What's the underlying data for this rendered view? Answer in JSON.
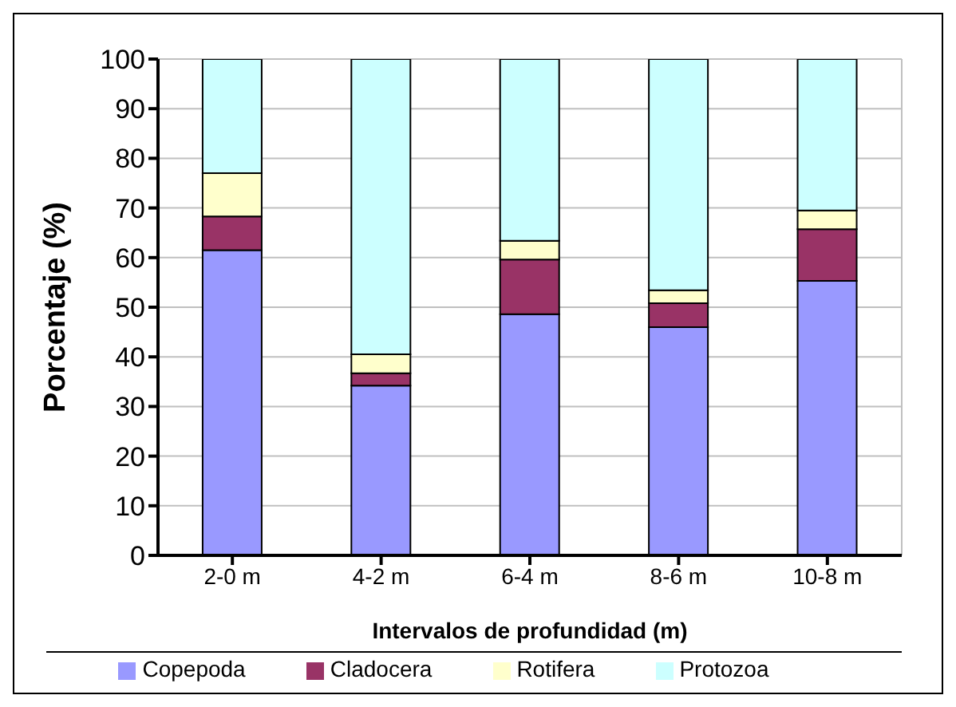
{
  "chart_data": {
    "type": "bar",
    "stacked": true,
    "xlabel": "Intervalos de profundidad (m)",
    "ylabel": "Porcentaje (%)",
    "categories": [
      "2-0 m",
      "4-2 m",
      "6-4 m",
      "8-6 m",
      "10-8 m"
    ],
    "series": [
      {
        "name": "Copepoda",
        "color": "#9999ff",
        "values": [
          61.5,
          34.2,
          48.6,
          46,
          55.3
        ]
      },
      {
        "name": "Cladocera",
        "color": "#993366",
        "values": [
          6.8,
          2.5,
          11,
          4.8,
          10.4
        ]
      },
      {
        "name": "Rotifera",
        "color": "#ffffcc",
        "values": [
          8.7,
          3.8,
          3.8,
          2.6,
          3.8
        ]
      },
      {
        "name": "Protozoa",
        "color": "#ccffff",
        "values": [
          23,
          59.5,
          36.6,
          46.6,
          30.5
        ]
      }
    ],
    "ylim": [
      0,
      100
    ],
    "yticks": [
      0,
      10,
      20,
      30,
      40,
      50,
      60,
      70,
      80,
      90,
      100
    ],
    "grid": true,
    "legend": "bottom"
  }
}
